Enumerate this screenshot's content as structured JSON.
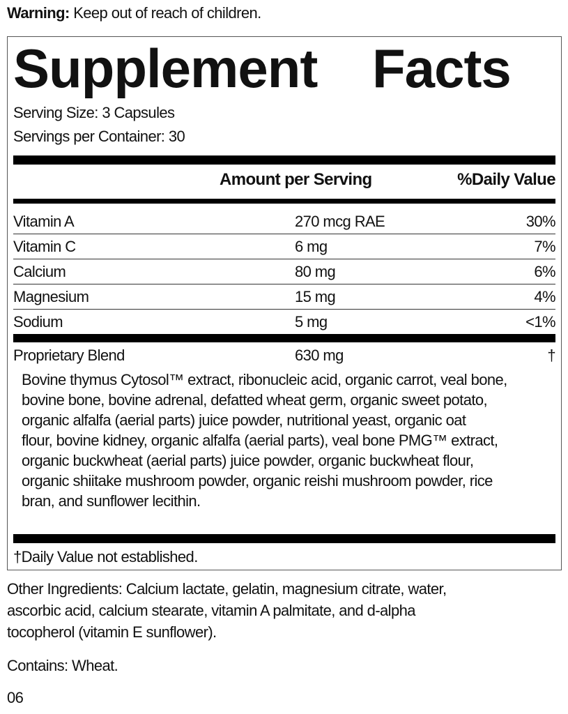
{
  "warning": {
    "label": "Warning:",
    "text": " Keep out of reach of children."
  },
  "facts": {
    "title": "Supplement Facts",
    "serving_size": "Serving Size: 3 Capsules",
    "servings_per_container": "Servings per Container: 30",
    "header": {
      "amount": "Amount per Serving",
      "dv": "%Daily Value"
    },
    "rows": [
      {
        "name": "Vitamin A",
        "amount": "270 mcg RAE",
        "dv": "30%"
      },
      {
        "name": "Vitamin C",
        "amount": "6 mg",
        "dv": "7%"
      },
      {
        "name": "Calcium",
        "amount": "80 mg",
        "dv": "6%"
      },
      {
        "name": "Magnesium",
        "amount": "15 mg",
        "dv": "4%"
      },
      {
        "name": "Sodium",
        "amount": "5 mg",
        "dv": "<1%"
      }
    ],
    "blend": {
      "name": "Proprietary Blend",
      "amount": "630 mg",
      "dv": "†",
      "lines": [
        "Bovine thymus Cytosol™ extract, ribonucleic acid, organic carrot, veal bone,",
        "bovine bone, bovine adrenal, defatted wheat germ, organic sweet potato,",
        "organic alfalfa (aerial parts) juice powder, nutritional yeast, organic oat",
        "flour, bovine kidney, organic alfalfa (aerial parts), veal bone PMG™ extract,",
        "organic buckwheat (aerial parts) juice powder, organic buckwheat flour,",
        "organic shiitake mushroom powder, organic reishi mushroom powder, rice",
        "bran, and sunflower lecithin."
      ]
    },
    "footnote": "†Daily Value not established."
  },
  "other_ingredients": [
    "Other Ingredients: Calcium lactate, gelatin, magnesium citrate, water,",
    "ascorbic acid, calcium stearate, vitamin A palmitate, and d-alpha",
    "tocopherol (vitamin E sunflower)."
  ],
  "contains": "Contains: Wheat.",
  "code": "06"
}
